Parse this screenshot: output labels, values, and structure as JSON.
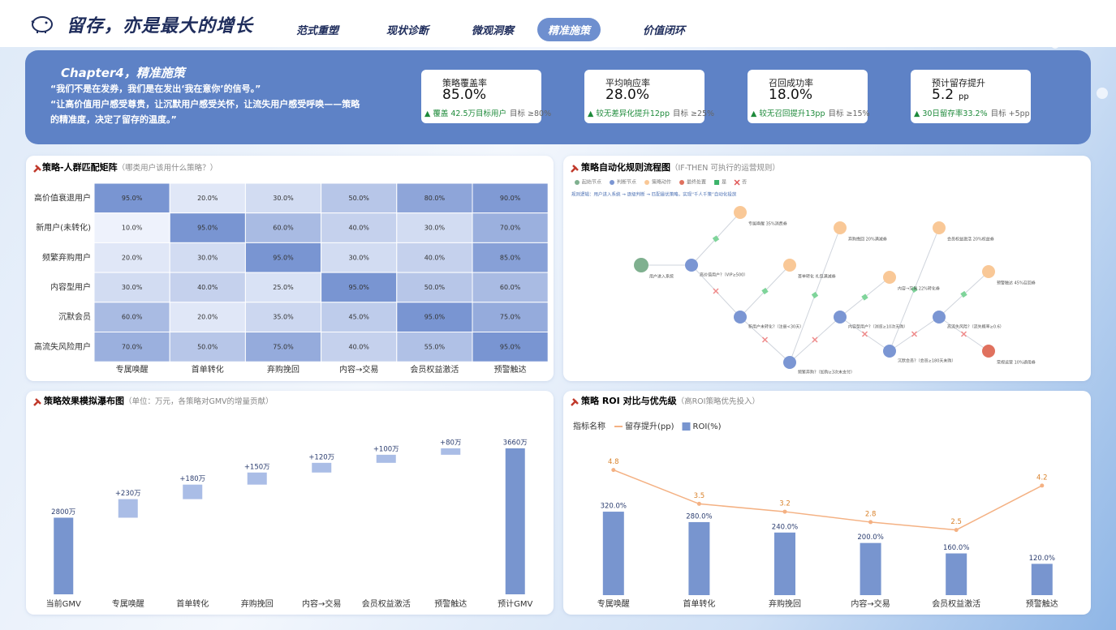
{
  "header": {
    "title": "留存，亦是最大的增长",
    "nav": [
      {
        "label": "范式重塑"
      },
      {
        "label": "现状诊断"
      },
      {
        "label": "微观洞察"
      },
      {
        "label": "精准施策",
        "active": true
      },
      {
        "label": "价值闭环"
      }
    ]
  },
  "banner": {
    "chapter": "Chapter4，精准施策",
    "quotes": [
      "“我们不是在发券，我们是在发出‘我在意你’的信号。”",
      " “让高价值用户感受尊贵，让沉默用户感受关怀，让流失用户感受呼唤——策略的精准度，决定了留存的温度。”"
    ]
  },
  "kpis": [
    {
      "label": "策略覆盖率",
      "value": "85.0%",
      "note": "▲ 覆盖 42.5万目标用户",
      "target": "目标 ≥80%"
    },
    {
      "label": "平均响应率",
      "value": "28.0%",
      "note": "▲ 较无差异化提升12pp",
      "target": "目标 ≥25%"
    },
    {
      "label": "召回成功率",
      "value": "18.0%",
      "note": "▲ 较无召回提升13pp",
      "target": "目标 ≥15%"
    },
    {
      "label": "预计留存提升",
      "value": "5.2",
      "unit": "pp",
      "note": "▲ 30日留存率33.2%",
      "target": "目标 +5pp"
    }
  ],
  "flow": {
    "title": "策略自动化规则流程图",
    "subtitle": "（IF-THEN 可执行的运营规则）",
    "legend": [
      {
        "label": "起始节点",
        "kind": "start"
      },
      {
        "label": "判断节点",
        "kind": "decision"
      },
      {
        "label": "策略动作",
        "kind": "action"
      },
      {
        "label": "最终处置",
        "kind": "final"
      },
      {
        "label": "是",
        "kind": "yes"
      },
      {
        "label": "否",
        "kind": "no"
      }
    ],
    "rule": "规则逻辑：用户进入系统 → 逐级判断 → 匹配最优策略，实现“千人千策”自动化投放",
    "nodes": [
      {
        "label": "用户进入系统",
        "kind": "start"
      },
      {
        "label": "高价值用户?（VIP≥500）",
        "kind": "decision"
      },
      {
        "label": "专属唤醒 35%消费券",
        "kind": "action"
      },
      {
        "label": "新用户未转化?（注册<30天）",
        "kind": "decision"
      },
      {
        "label": "首单转化 礼包满减券",
        "kind": "action"
      },
      {
        "label": "频繁弃购?（加购≥3次未支付）",
        "kind": "decision"
      },
      {
        "label": "弃购挽回 20%满减券",
        "kind": "action"
      },
      {
        "label": "内容型用户?（浏览≥10次无购）",
        "kind": "decision"
      },
      {
        "label": "内容→交易 22%转化券",
        "kind": "action"
      },
      {
        "label": "沉默会员?（会员≥180天未购）",
        "kind": "decision"
      },
      {
        "label": "会员权益激活 20%权益券",
        "kind": "action"
      },
      {
        "label": "高流失风险?（流失概率≥0.6）",
        "kind": "decision"
      },
      {
        "label": "预警触达 45%召回券",
        "kind": "action"
      },
      {
        "label": "常规运营 10%通用券",
        "kind": "final"
      }
    ]
  },
  "chart_data": [
    {
      "type": "heatmap",
      "title": "策略-人群匹配矩阵",
      "subtitle": "（哪类用户该用什么策略？）",
      "rows": [
        "高价值衰退用户",
        "新用户(未转化)",
        "频繁弃购用户",
        "内容型用户",
        "沉默会员",
        "高流失风险用户"
      ],
      "categories": [
        "专属唤醒",
        "首单转化",
        "弃购挽回",
        "内容→交易",
        "会员权益激活",
        "预警触达"
      ],
      "values": [
        [
          95,
          20,
          30,
          50,
          80,
          90
        ],
        [
          10,
          95,
          60,
          40,
          30,
          70
        ],
        [
          20,
          30,
          95,
          30,
          40,
          85
        ],
        [
          30,
          40,
          25,
          95,
          50,
          60
        ],
        [
          60,
          20,
          35,
          45,
          95,
          75
        ],
        [
          70,
          50,
          75,
          40,
          55,
          95
        ]
      ],
      "value_labels": [
        [
          "95.0%",
          "20.0%",
          "30.0%",
          "50.0%",
          "80.0%",
          "90.0%"
        ],
        [
          "10.0%",
          "95.0%",
          "60.0%",
          "40.0%",
          "30.0%",
          "70.0%"
        ],
        [
          "20.0%",
          "30.0%",
          "95.0%",
          "30.0%",
          "40.0%",
          "85.0%"
        ],
        [
          "30.0%",
          "40.0%",
          "25.0%",
          "95.0%",
          "50.0%",
          "60.0%"
        ],
        [
          "60.0%",
          "20.0%",
          "35.0%",
          "45.0%",
          "95.0%",
          "75.0%"
        ],
        [
          "70.0%",
          "50.0%",
          "75.0%",
          "40.0%",
          "55.0%",
          "95.0%"
        ]
      ],
      "colors": [
        "#eef2fc",
        "#7995d2"
      ]
    },
    {
      "type": "waterfall",
      "title": "策略效果模拟瀑布图",
      "subtitle": "（单位：万元，各策略对GMV的增量贡献）",
      "categories": [
        "当前GMV",
        "专属唤醒",
        "首单转化",
        "弃购挽回",
        "内容→交易",
        "会员权益激活",
        "预警触达",
        "预计GMV"
      ],
      "values": [
        2800,
        230,
        180,
        150,
        120,
        100,
        80,
        3660
      ],
      "value_labels": [
        "2800万",
        "+230万",
        "+180万",
        "+150万",
        "+120万",
        "+100万",
        "+80万",
        "3660万"
      ],
      "measure": [
        "total",
        "delta",
        "delta",
        "delta",
        "delta",
        "delta",
        "delta",
        "total"
      ],
      "color": "#7895cf",
      "delta_color": "#aabde6",
      "ylim": [
        1850,
        3800
      ]
    },
    {
      "type": "bar-line",
      "title": "策略 ROI 对比与优先级",
      "subtitle": "（高ROI策略优先投入）",
      "legend_title": "指标名称",
      "categories": [
        "专属唤醒",
        "首单转化",
        "弃购挽回",
        "内容→交易",
        "会员权益激活",
        "预警触达"
      ],
      "series": [
        {
          "name": "留存提升(pp)",
          "type": "line",
          "axis": "y2",
          "color": "#f4b183",
          "values": [
            4.8,
            3.5,
            3.2,
            2.8,
            2.5,
            4.2
          ]
        },
        {
          "name": "ROI(%)",
          "type": "bar",
          "color": "#7895cf",
          "values": [
            320,
            280,
            240,
            200,
            160,
            120
          ],
          "value_labels": [
            "320.0%",
            "280.0%",
            "240.0%",
            "200.0%",
            "160.0%",
            "120.0%"
          ]
        }
      ],
      "ylim": [
        0,
        600
      ],
      "y2lim": [
        0,
        6
      ]
    }
  ]
}
